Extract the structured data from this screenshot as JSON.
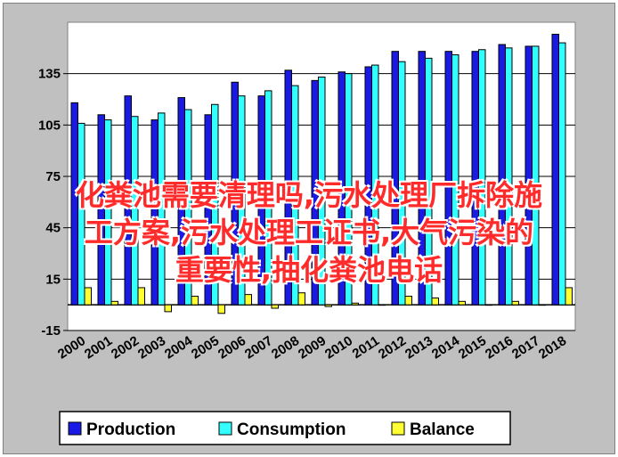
{
  "chart_data": {
    "type": "bar",
    "categories": [
      "2000",
      "2001",
      "2002",
      "2003",
      "2004",
      "2005",
      "2006",
      "2007",
      "2008",
      "2009",
      "2010",
      "2011",
      "2012",
      "2013",
      "2014",
      "2015",
      "2016",
      "2017",
      "2018"
    ],
    "series": [
      {
        "name": "Production",
        "color": "#1a1ae6",
        "values": [
          118,
          111,
          122,
          108,
          121,
          111,
          130,
          122,
          137,
          131,
          136,
          139,
          148,
          148,
          148,
          148,
          152,
          151,
          158
        ]
      },
      {
        "name": "Consumption",
        "color": "#33ffff",
        "values": [
          106,
          108,
          110,
          112,
          114,
          117,
          122,
          125,
          128,
          133,
          135,
          140,
          142,
          144,
          146,
          149,
          150,
          151,
          153
        ]
      },
      {
        "name": "Balance",
        "color": "#ffff33",
        "values": [
          10,
          2,
          10,
          -4,
          5,
          -5,
          6,
          -2,
          7,
          -1,
          1,
          0,
          5,
          4,
          2,
          0,
          2,
          0,
          10
        ]
      }
    ],
    "yticks": [
      -15,
      15,
      45,
      75,
      105,
      135
    ],
    "ylim": [
      -15,
      165
    ],
    "grid": true,
    "legend_position": "bottom",
    "title": "",
    "xlabel": "",
    "ylabel": ""
  },
  "overlay": {
    "lines": [
      "化粪池需要清理吗,污水处理厂拆除施",
      "工方案,污水处理工证书,大气污染的",
      "重要性,抽化粪池电话"
    ]
  }
}
